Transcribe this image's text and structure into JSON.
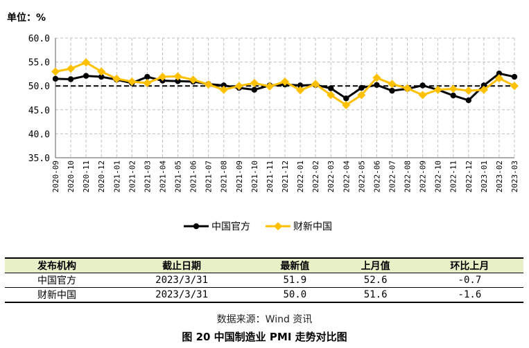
{
  "chart_data": {
    "type": "line",
    "unit_label": "单位：%",
    "ylim": [
      35,
      60
    ],
    "y_ticks": [
      "60.0",
      "55.0",
      "50.0",
      "45.0",
      "40.0",
      "35.0"
    ],
    "reference_line": 50,
    "grid": true,
    "legend_position": "bottom",
    "categories": [
      "2020-09",
      "2020-10",
      "2020-11",
      "2020-12",
      "2021-01",
      "2021-02",
      "2021-03",
      "2021-04",
      "2021-05",
      "2021-06",
      "2021-07",
      "2021-08",
      "2021-09",
      "2021-10",
      "2021-11",
      "2021-12",
      "2022-01",
      "2022-02",
      "2022-03",
      "2022-04",
      "2022-05",
      "2022-06",
      "2022-07",
      "2022-08",
      "2022-09",
      "2022-10",
      "2022-11",
      "2022-12",
      "2023-01",
      "2023-02",
      "2023-03"
    ],
    "series": [
      {
        "name": "中国官方",
        "color": "#000000",
        "marker": "circle",
        "values": [
          51.5,
          51.4,
          52.1,
          51.9,
          51.3,
          50.6,
          51.9,
          51.1,
          51.0,
          50.9,
          50.4,
          50.1,
          49.6,
          49.2,
          50.1,
          50.3,
          50.1,
          50.2,
          49.5,
          47.4,
          49.6,
          50.2,
          49.0,
          49.4,
          50.1,
          49.2,
          48.0,
          47.0,
          50.1,
          52.6,
          51.9
        ]
      },
      {
        "name": "财新中国",
        "color": "#ffc000",
        "marker": "diamond",
        "values": [
          53.0,
          53.6,
          54.9,
          53.0,
          51.5,
          50.9,
          50.6,
          51.9,
          52.0,
          51.3,
          50.3,
          49.2,
          50.0,
          50.6,
          49.9,
          50.9,
          49.1,
          50.4,
          48.1,
          46.0,
          48.1,
          51.7,
          50.4,
          49.5,
          48.1,
          49.2,
          49.4,
          49.0,
          49.2,
          51.6,
          50.0
        ]
      }
    ]
  },
  "table": {
    "headers": [
      "发布机构",
      "截止日期",
      "最新值",
      "上月值",
      "环比上月"
    ],
    "rows": [
      [
        "中国官方",
        "2023/3/31",
        "51.9",
        "52.6",
        "-0.7"
      ],
      [
        "财新中国",
        "2023/3/31",
        "50.0",
        "51.6",
        "-1.6"
      ]
    ]
  },
  "source_note": "数据来源：Wind 资讯",
  "figure_caption": "图 20   中国制造业 PMI 走势对比图"
}
